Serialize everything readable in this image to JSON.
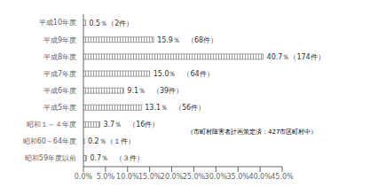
{
  "chart_data": {
    "type": "bar",
    "orientation": "horizontal",
    "categories": [
      "平成10年度",
      "平成9年度",
      "平成8年度",
      "平成7年度",
      "平成6年度",
      "平成5年度",
      "昭和１～４年度",
      "昭和60～64年度",
      "昭和59年度以前"
    ],
    "values": [
      0.5,
      15.9,
      40.7,
      15.0,
      9.1,
      13.1,
      3.7,
      0.2,
      0.7
    ],
    "value_labels": [
      "0.5％（2件）",
      "15.9％　（68件）",
      "40.7％（174件）",
      "15.0％　（64件）",
      "9.1％　（39件）",
      "13.1％　（56件）",
      "3.7％　（16件）",
      "0.2％（１件）",
      "0.7％　（３件）"
    ],
    "data_labels": true,
    "xlim": [
      0,
      45
    ],
    "xticks": [
      {
        "value": 0,
        "label": "0.0%"
      },
      {
        "value": 5,
        "label": "5.0%"
      },
      {
        "value": 10,
        "label": "10.0%"
      },
      {
        "value": 15,
        "label": "15.0%"
      },
      {
        "value": 20,
        "label": "20.0%"
      },
      {
        "value": 25,
        "label": "25.0%"
      },
      {
        "value": 30,
        "label": "30.0%"
      },
      {
        "value": 35,
        "label": "35.0%"
      },
      {
        "value": 40,
        "label": "40.0%"
      },
      {
        "value": 45,
        "label": "45.0%"
      }
    ],
    "annotations": [
      "（市町村障害者計画策定済：427市区町村中）"
    ],
    "color": "#888888",
    "grid": false
  }
}
